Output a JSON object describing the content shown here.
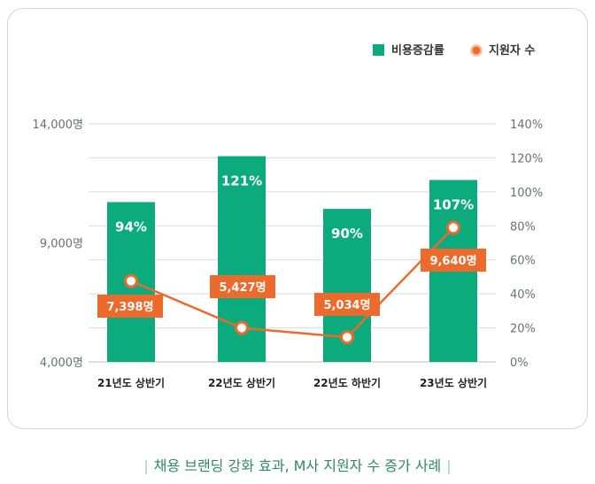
{
  "chart_data": {
    "type": "bar+line",
    "categories": [
      "21년도 상반기",
      "22년도 상반기",
      "22년도 하반기",
      "23년도 상반기"
    ],
    "series": [
      {
        "name": "비용증감률",
        "type": "bar",
        "axis": "right",
        "values": [
          94,
          121,
          90,
          107
        ],
        "labels": [
          "94%",
          "121%",
          "90%",
          "107%"
        ],
        "color": "#0bab7e"
      },
      {
        "name": "지원자 수",
        "type": "line",
        "axis": "left",
        "values": [
          7398,
          5427,
          5034,
          9640
        ],
        "labels": [
          "7,398명",
          "5,427명",
          "5,034명",
          "9,640명"
        ],
        "color": "#ec6a2c"
      }
    ],
    "y_left": {
      "range": [
        4000,
        14000
      ],
      "ticks": [
        4000,
        9000,
        14000
      ],
      "tick_labels": [
        "4,000명",
        "9,000명",
        "14,000명"
      ]
    },
    "y_right": {
      "range": [
        0,
        140
      ],
      "ticks": [
        0,
        20,
        40,
        60,
        80,
        100,
        120,
        140
      ],
      "tick_labels": [
        "0%",
        "20%",
        "40%",
        "60%",
        "80%",
        "100%",
        "120%",
        "140%"
      ]
    },
    "legend": {
      "placement": "top-right",
      "items": [
        "비용증감률",
        "지원자 수"
      ]
    }
  },
  "caption": "채용 브랜딩 강화 효과, M사 지원자 수 증가 사례",
  "caption_bar": "|"
}
